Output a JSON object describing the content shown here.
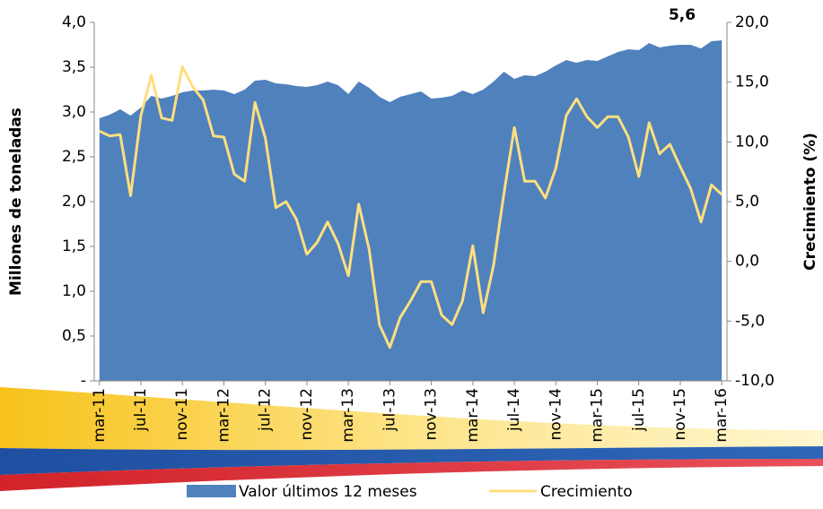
{
  "chart_data": {
    "type": "area-line",
    "annotation": "5,6",
    "y_label": "Millones de toneladas",
    "y2_label": "Crecimiento  (%)",
    "categories": [
      "mar-11",
      null,
      null,
      null,
      "jul-11",
      null,
      null,
      null,
      "nov-11",
      null,
      null,
      null,
      "mar-12",
      null,
      null,
      null,
      "jul-12",
      null,
      null,
      null,
      "nov-12",
      null,
      null,
      null,
      "mar-13",
      null,
      null,
      null,
      "jul-13",
      null,
      null,
      null,
      "nov-13",
      null,
      null,
      null,
      "mar-14",
      null,
      null,
      null,
      "jul-14",
      null,
      null,
      null,
      "nov-14",
      null,
      null,
      null,
      "mar-15",
      null,
      null,
      null,
      "jul-15",
      null,
      null,
      null,
      "nov-15",
      null,
      null,
      null,
      "mar-16"
    ],
    "series": [
      {
        "name": "Valor últimos 12 meses",
        "color": "#4f81bd",
        "values": [
          2.93,
          2.97,
          3.03,
          2.96,
          3.05,
          3.18,
          3.15,
          3.18,
          3.22,
          3.24,
          3.24,
          3.25,
          3.24,
          3.2,
          3.25,
          3.35,
          3.36,
          3.32,
          3.31,
          3.29,
          3.28,
          3.3,
          3.34,
          3.3,
          3.2,
          3.34,
          3.27,
          3.17,
          3.11,
          3.17,
          3.2,
          3.23,
          3.15,
          3.16,
          3.18,
          3.24,
          3.2,
          3.25,
          3.34,
          3.45,
          3.37,
          3.41,
          3.4,
          3.45,
          3.52,
          3.58,
          3.55,
          3.58,
          3.57,
          3.62,
          3.67,
          3.7,
          3.69,
          3.77,
          3.72,
          3.74,
          3.75,
          3.75,
          3.71,
          3.79,
          3.8
        ]
      },
      {
        "name": "Crecimiento",
        "color": "#fedf7f",
        "axis": "y2",
        "values": [
          10.9,
          10.5,
          10.6,
          5.5,
          12.2,
          15.6,
          12.0,
          11.8,
          16.3,
          14.6,
          13.5,
          10.5,
          10.4,
          7.3,
          6.7,
          13.3,
          10.3,
          4.5,
          5.0,
          3.5,
          0.6,
          1.6,
          3.3,
          1.5,
          -1.2,
          4.8,
          1.0,
          -5.3,
          -7.2,
          -4.7,
          -3.3,
          -1.7,
          -1.7,
          -4.5,
          -5.3,
          -3.3,
          1.3,
          -4.3,
          -0.3,
          5.7,
          11.2,
          6.7,
          6.7,
          5.3,
          7.8,
          12.2,
          13.6,
          12.1,
          11.2,
          12.1,
          12.1,
          10.4,
          7.1,
          11.6,
          9.0,
          9.8,
          7.9,
          6.1,
          3.3,
          6.4,
          5.6
        ]
      }
    ],
    "ylim": [
      0,
      4
    ],
    "yticks": [
      {
        "value": 0,
        "label": "-"
      },
      {
        "value": 0.5,
        "label": "0,5"
      },
      {
        "value": 1,
        "label": "1,0"
      },
      {
        "value": 1.5,
        "label": "1,5"
      },
      {
        "value": 2,
        "label": "2,0"
      },
      {
        "value": 2.5,
        "label": "2,5"
      },
      {
        "value": 3,
        "label": "3,0"
      },
      {
        "value": 3.5,
        "label": "3,5"
      },
      {
        "value": 4,
        "label": "4,0"
      }
    ],
    "y2lim": [
      -10,
      20
    ],
    "y2ticks": [
      {
        "value": -10,
        "label": "-10,0"
      },
      {
        "value": -5,
        "label": "-5,0"
      },
      {
        "value": 0,
        "label": "0,0"
      },
      {
        "value": 5,
        "label": "5,0"
      },
      {
        "value": 10,
        "label": "10,0"
      },
      {
        "value": 15,
        "label": "15,0"
      },
      {
        "value": 20,
        "label": "20,0"
      }
    ],
    "legend": "bottom"
  }
}
